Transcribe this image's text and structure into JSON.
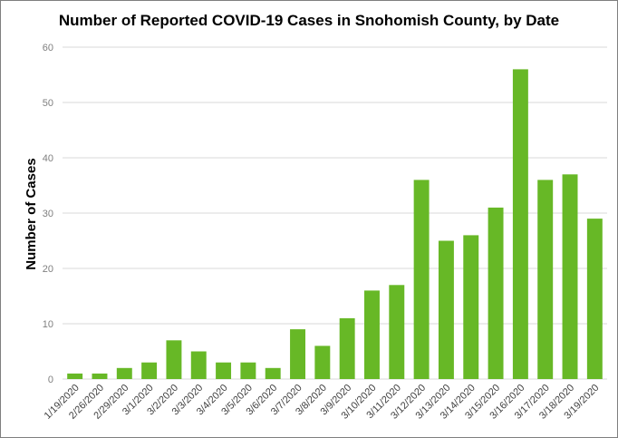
{
  "chart_data": {
    "type": "bar",
    "title": "Number of Reported COVID-19 Cases in Snohomish County, by Date",
    "xlabel": "",
    "ylabel": "Number of Cases",
    "ylim": [
      0,
      60
    ],
    "yticks": [
      0,
      10,
      20,
      30,
      40,
      50,
      60
    ],
    "grid": true,
    "categories": [
      "1/19/2020",
      "2/26/2020",
      "2/29/2020",
      "3/1/2020",
      "3/2/2020",
      "3/3/2020",
      "3/4/2020",
      "3/5/2020",
      "3/6/2020",
      "3/7/2020",
      "3/8/2020",
      "3/9/2020",
      "3/10/2020",
      "3/11/2020",
      "3/12/2020",
      "3/13/2020",
      "3/14/2020",
      "3/15/2020",
      "3/16/2020",
      "3/17/2020",
      "3/18/2020",
      "3/19/2020"
    ],
    "values": [
      1,
      1,
      2,
      3,
      7,
      5,
      3,
      3,
      2,
      9,
      6,
      11,
      16,
      17,
      36,
      25,
      26,
      31,
      56,
      36,
      37,
      29
    ],
    "bar_color": "#67b826",
    "grid_color": "#d9d9d9"
  }
}
